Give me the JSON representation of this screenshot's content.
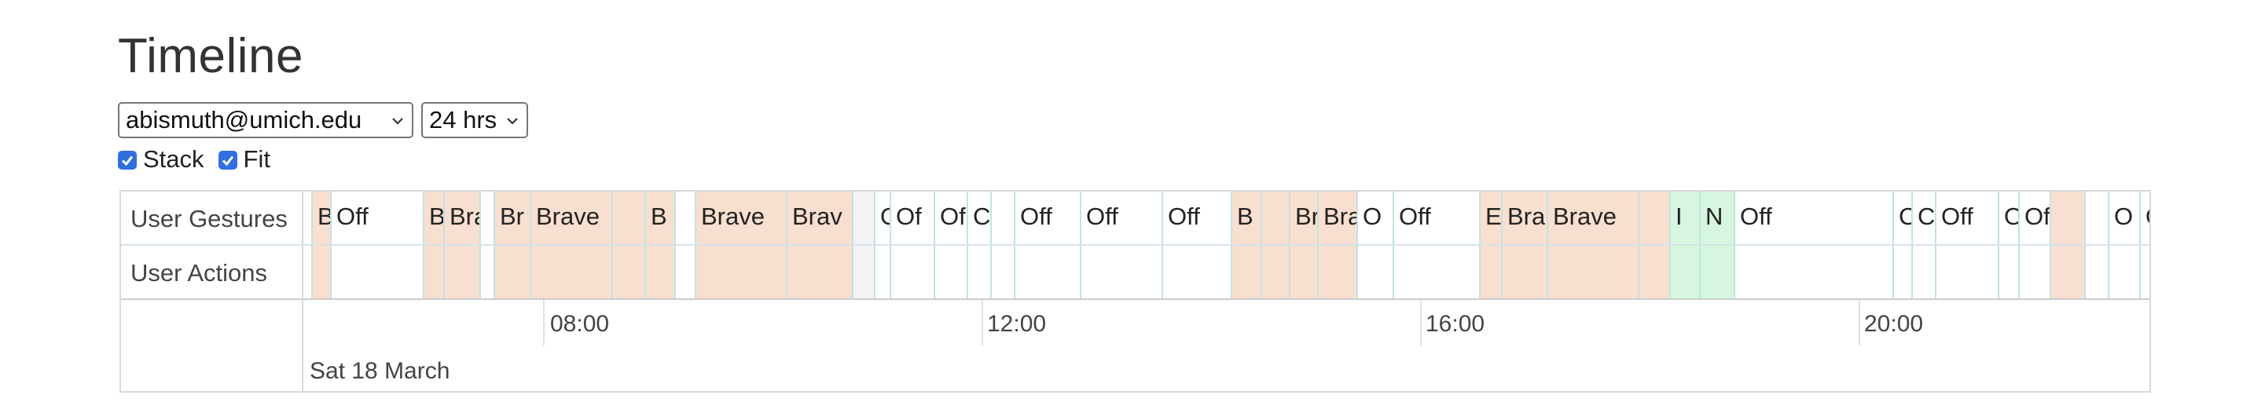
{
  "title": "Timeline",
  "controls": {
    "user_select": "abismuth@umich.edu",
    "range_select": "24 hrs",
    "stack_label": "Stack",
    "fit_label": "Fit",
    "stack_checked": true,
    "fit_checked": true
  },
  "rows": [
    "User Gestures",
    "User Actions"
  ],
  "axis": {
    "ticks": [
      "08:00",
      "12:00",
      "16:00",
      "20:00"
    ],
    "date": "Sat 18 March"
  },
  "colors": {
    "brave": "#f9dfcf",
    "off": "#ffffff",
    "other_green": "#d7f6df",
    "teal_line": "#bfe4e4"
  },
  "segments": [
    {
      "label": "B",
      "color": "#f9dfcf"
    },
    {
      "label": "Off",
      "color": "#ffffff"
    },
    {
      "label": "B",
      "color": "#f9dfcf"
    },
    {
      "label": "Bra",
      "color": "#f9dfcf"
    },
    {
      "label": "",
      "color": "#ffffff"
    },
    {
      "label": "Br",
      "color": "#f9dfcf"
    },
    {
      "label": "Brave",
      "color": "#f9dfcf"
    },
    {
      "label": "",
      "color": "#f9dfcf"
    },
    {
      "label": "B",
      "color": "#f9dfcf"
    },
    {
      "label": "",
      "color": "#ffffff"
    },
    {
      "label": "Brave",
      "color": "#f9dfcf"
    },
    {
      "label": "Brav",
      "color": "#f9dfcf"
    },
    {
      "label": "",
      "color": "#f3f3f3"
    },
    {
      "label": "O",
      "color": "#ffffff"
    },
    {
      "label": "Of",
      "color": "#ffffff"
    },
    {
      "label": "Of",
      "color": "#ffffff"
    },
    {
      "label": "C",
      "color": "#ffffff"
    },
    {
      "label": "",
      "color": "#ffffff"
    },
    {
      "label": "Off",
      "color": "#ffffff"
    },
    {
      "label": "Off",
      "color": "#ffffff"
    },
    {
      "label": "Off",
      "color": "#ffffff"
    },
    {
      "label": "B",
      "color": "#f9dfcf"
    },
    {
      "label": "",
      "color": "#f9dfcf"
    },
    {
      "label": "Br",
      "color": "#f9dfcf"
    },
    {
      "label": "Bra",
      "color": "#f9dfcf"
    },
    {
      "label": "O",
      "color": "#ffffff"
    },
    {
      "label": "Off",
      "color": "#ffffff"
    },
    {
      "label": "E",
      "color": "#f9dfcf"
    },
    {
      "label": "Bra",
      "color": "#f9dfcf"
    },
    {
      "label": "Brave",
      "color": "#f9dfcf"
    },
    {
      "label": "",
      "color": "#f9dfcf"
    },
    {
      "label": "I",
      "color": "#d7f6df"
    },
    {
      "label": "N",
      "color": "#d7f6df"
    },
    {
      "label": "Off",
      "color": "#ffffff"
    },
    {
      "label": "C",
      "color": "#ffffff"
    },
    {
      "label": "C",
      "color": "#ffffff"
    },
    {
      "label": "Off",
      "color": "#ffffff"
    },
    {
      "label": "O",
      "color": "#ffffff"
    },
    {
      "label": "Of",
      "color": "#ffffff"
    },
    {
      "label": "",
      "color": "#f9dfcf"
    },
    {
      "label": "",
      "color": "#ffffff"
    },
    {
      "label": "O",
      "color": "#ffffff"
    },
    {
      "label": "Off",
      "color": "#ffffff"
    }
  ]
}
